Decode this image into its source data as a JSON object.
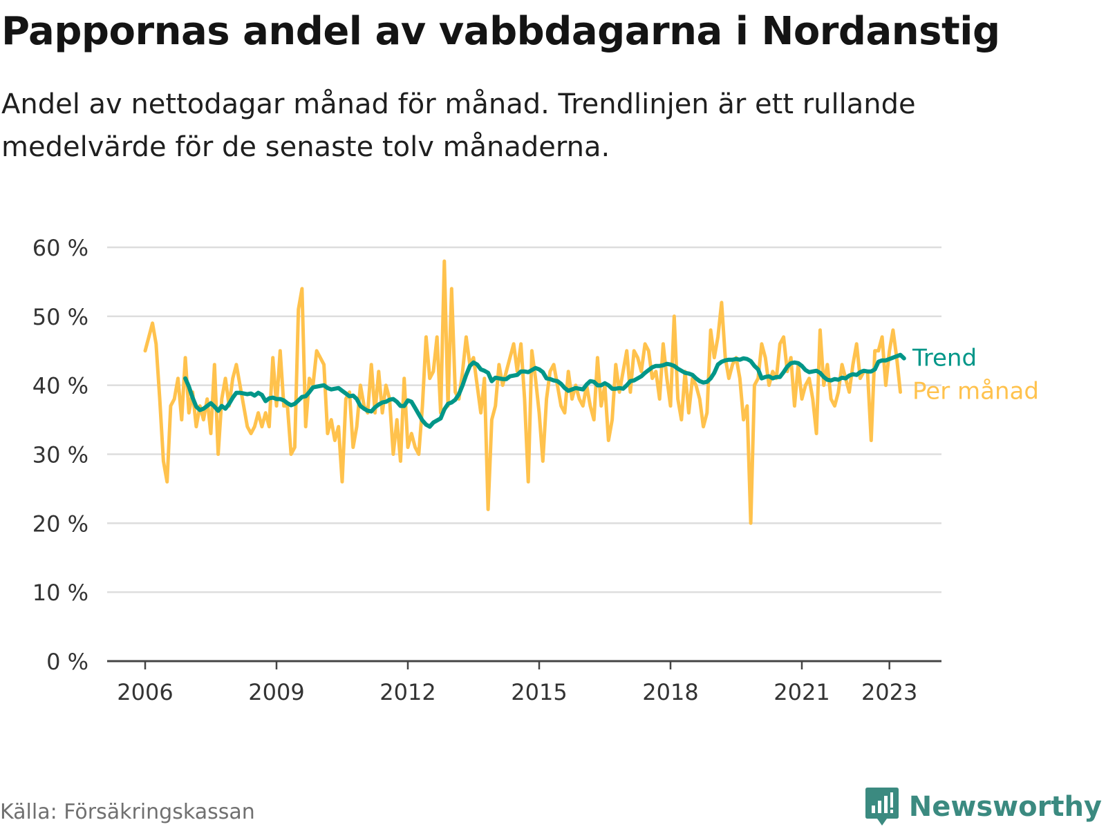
{
  "title": "Pappornas andel av vabbdagarna i Nordanstig",
  "subtitle": "Andel av nettodagar månad för månad. Trendlinjen är ett rullande medelvärde för de senaste tolv månaderna.",
  "source": "Källa: Försäkringskassan",
  "brand": "Newsworthy",
  "colors": {
    "trend": "#009688",
    "monthly": "#ffc24d",
    "grid": "#dddddd",
    "axis": "#444444",
    "brand": "#3b8a80"
  },
  "chart_data": {
    "type": "line",
    "ylim": [
      0,
      60
    ],
    "xlim": [
      2006,
      2024.8
    ],
    "y_ticks": [
      "0 %",
      "10 %",
      "20 %",
      "30 %",
      "40 %",
      "50 %",
      "60 %"
    ],
    "y_tick_values": [
      0,
      10,
      20,
      30,
      40,
      50,
      60
    ],
    "x_ticks": [
      "2006",
      "2009",
      "2012",
      "2015",
      "2018",
      "2021",
      "2023"
    ],
    "x_tick_values": [
      2006,
      2009,
      2012,
      2015,
      2018,
      2021,
      2023
    ],
    "grid": true,
    "series": [
      {
        "name": "Per månad",
        "color": "#ffc24d",
        "start": "2006-01",
        "values": [
          45,
          47,
          49,
          46,
          38,
          29,
          26,
          37,
          38,
          41,
          35,
          44,
          36,
          39,
          34,
          37,
          35,
          38,
          33,
          43,
          30,
          38,
          41,
          37,
          41,
          43,
          40,
          37,
          34,
          33,
          34,
          36,
          34,
          36,
          34,
          44,
          37,
          45,
          37,
          37,
          30,
          31,
          51,
          54,
          34,
          41,
          40,
          45,
          44,
          43,
          33,
          35,
          32,
          34,
          26,
          38,
          39,
          31,
          34,
          40,
          37,
          36,
          43,
          36,
          42,
          36,
          40,
          38,
          30,
          35,
          29,
          41,
          31,
          33,
          31,
          30,
          37,
          47,
          41,
          42,
          47,
          36,
          58,
          37,
          54,
          39,
          38,
          42,
          47,
          43,
          44,
          40,
          36,
          41,
          22,
          35,
          37,
          43,
          40,
          42,
          44,
          46,
          42,
          46,
          38,
          26,
          45,
          41,
          36,
          29,
          38,
          42,
          43,
          40,
          37,
          36,
          42,
          38,
          40,
          38,
          37,
          40,
          37,
          35,
          44,
          37,
          40,
          32,
          35,
          43,
          39,
          42,
          45,
          39,
          45,
          44,
          42,
          46,
          45,
          41,
          42,
          38,
          46,
          41,
          37,
          50,
          38,
          35,
          42,
          36,
          41,
          40,
          38,
          34,
          36,
          48,
          44,
          47,
          52,
          44,
          41,
          43,
          44,
          41,
          35,
          37,
          20,
          40,
          41,
          46,
          44,
          40,
          42,
          41,
          46,
          47,
          42,
          44,
          37,
          43,
          38,
          40,
          41,
          38,
          33,
          48,
          40,
          43,
          38,
          37,
          39,
          43,
          41,
          39,
          43,
          46,
          41,
          42,
          42,
          32,
          45,
          45,
          47,
          40,
          45,
          48,
          44,
          39
        ],
        "unit": "%"
      },
      {
        "name": "Trend",
        "color": "#009688",
        "start": "2006-12",
        "values": [
          41.0,
          39.8,
          38.2,
          36.9,
          36.4,
          36.6,
          37.0,
          37.4,
          36.9,
          36.3,
          37.0,
          36.6,
          37.3,
          38.2,
          38.9,
          38.9,
          38.8,
          38.7,
          38.8,
          38.5,
          38.9,
          38.6,
          37.7,
          38.1,
          38.2,
          38.0,
          38.0,
          37.8,
          37.4,
          37.1,
          37.3,
          37.8,
          38.3,
          38.4,
          39.0,
          39.7,
          39.8,
          39.9,
          40.0,
          39.6,
          39.4,
          39.5,
          39.6,
          39.2,
          38.8,
          38.4,
          38.5,
          38.0,
          37.0,
          36.6,
          36.3,
          36.2,
          36.8,
          37.2,
          37.5,
          37.6,
          37.9,
          38.0,
          37.6,
          37.0,
          37.0,
          37.8,
          37.6,
          36.7,
          35.8,
          34.9,
          34.3,
          34.0,
          34.6,
          34.9,
          35.2,
          36.5,
          37.3,
          37.5,
          37.9,
          38.7,
          40.0,
          41.5,
          42.8,
          43.3,
          43.0,
          42.3,
          42.1,
          41.8,
          40.6,
          41.1,
          41.0,
          40.9,
          40.9,
          41.3,
          41.4,
          41.5,
          42.0,
          42.0,
          41.9,
          42.2,
          42.5,
          42.3,
          41.9,
          41.0,
          40.9,
          40.7,
          40.6,
          40.2,
          39.6,
          39.2,
          39.4,
          39.6,
          39.5,
          39.4,
          40.1,
          40.6,
          40.5,
          40.0,
          40.0,
          40.3,
          40.0,
          39.5,
          39.5,
          39.6,
          39.5,
          40.0,
          40.6,
          40.7,
          41.0,
          41.3,
          41.8,
          42.2,
          42.6,
          42.8,
          42.8,
          42.9,
          43.1,
          43.0,
          42.8,
          42.4,
          42.1,
          41.8,
          41.7,
          41.5,
          41.0,
          40.6,
          40.4,
          40.5,
          41.0,
          41.8,
          43.0,
          43.4,
          43.6,
          43.7,
          43.7,
          43.8,
          43.7,
          43.9,
          43.8,
          43.5,
          42.8,
          42.3,
          41.0,
          41.2,
          41.3,
          41.0,
          41.2,
          41.2,
          41.9,
          42.7,
          43.2,
          43.3,
          43.2,
          42.8,
          42.2,
          41.9,
          42.0,
          42.1,
          41.8,
          41.2,
          40.8,
          40.7,
          40.9,
          40.8,
          41.1,
          41.0,
          41.4,
          41.6,
          41.5,
          41.9,
          42.1,
          42.0,
          42.0,
          42.3,
          43.4,
          43.6,
          43.6,
          43.8,
          44.0,
          44.2,
          44.4,
          43.9
        ],
        "unit": "%"
      }
    ],
    "end_labels": [
      "Trend",
      "Per månad"
    ]
  }
}
